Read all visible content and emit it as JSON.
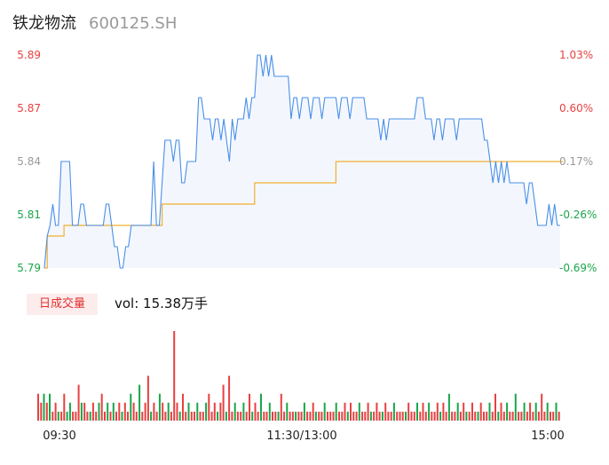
{
  "header": {
    "name": "铁龙物流",
    "code": "600125.SH"
  },
  "colors": {
    "up": "#e84040",
    "down": "#1aa64a",
    "flat": "#999999",
    "price_line": "#4a8fe8",
    "avg_line": "#f0b030",
    "area_fill": "#f3f7fd"
  },
  "volume": {
    "badge": "日成交量",
    "label": "vol: 15.38万手"
  },
  "chart_data": {
    "type": "line",
    "price_axis": {
      "ticks": [
        "5.89",
        "5.87",
        "5.84",
        "5.81",
        "5.79"
      ],
      "ylim": [
        5.79,
        5.89
      ]
    },
    "pct_axis": {
      "ticks": [
        "1.03%",
        "0.60%",
        "0.17%",
        "-0.26%",
        "-0.69%"
      ]
    },
    "time_axis": [
      "09:30",
      "11:30/13:00",
      "15:00"
    ],
    "series": [
      {
        "key": "price",
        "values": [
          5.79,
          5.805,
          5.81,
          5.82,
          5.81,
          5.81,
          5.84,
          5.84,
          5.84,
          5.84,
          5.81,
          5.81,
          5.81,
          5.82,
          5.82,
          5.81,
          5.81,
          5.81,
          5.81,
          5.81,
          5.81,
          5.81,
          5.82,
          5.82,
          5.81,
          5.8,
          5.8,
          5.79,
          5.79,
          5.8,
          5.8,
          5.81,
          5.81,
          5.81,
          5.81,
          5.81,
          5.81,
          5.81,
          5.81,
          5.84,
          5.81,
          5.81,
          5.83,
          5.85,
          5.85,
          5.85,
          5.84,
          5.85,
          5.85,
          5.83,
          5.83,
          5.84,
          5.84,
          5.84,
          5.84,
          5.87,
          5.87,
          5.86,
          5.86,
          5.86,
          5.85,
          5.86,
          5.86,
          5.85,
          5.86,
          5.85,
          5.84,
          5.86,
          5.85,
          5.86,
          5.86,
          5.86,
          5.87,
          5.86,
          5.87,
          5.87,
          5.89,
          5.89,
          5.88,
          5.89,
          5.88,
          5.89,
          5.88,
          5.88,
          5.88,
          5.88,
          5.88,
          5.88,
          5.86,
          5.87,
          5.87,
          5.86,
          5.87,
          5.87,
          5.87,
          5.86,
          5.87,
          5.87,
          5.87,
          5.86,
          5.87,
          5.87,
          5.87,
          5.87,
          5.87,
          5.86,
          5.87,
          5.87,
          5.87,
          5.86,
          5.87,
          5.87,
          5.87,
          5.87,
          5.87,
          5.86,
          5.86,
          5.86,
          5.86,
          5.86,
          5.85,
          5.86,
          5.85,
          5.86,
          5.86,
          5.86,
          5.86,
          5.86,
          5.86,
          5.86,
          5.86,
          5.86,
          5.86,
          5.87,
          5.87,
          5.87,
          5.86,
          5.86,
          5.86,
          5.85,
          5.86,
          5.86,
          5.85,
          5.86,
          5.86,
          5.86,
          5.86,
          5.85,
          5.86,
          5.86,
          5.86,
          5.86,
          5.86,
          5.86,
          5.86,
          5.86,
          5.86,
          5.85,
          5.85,
          5.84,
          5.83,
          5.84,
          5.83,
          5.84,
          5.83,
          5.84,
          5.83,
          5.83,
          5.83,
          5.83,
          5.83,
          5.83,
          5.82,
          5.83,
          5.83,
          5.82,
          5.81,
          5.81,
          5.81,
          5.81,
          5.82,
          5.81,
          5.82,
          5.81,
          5.81
        ]
      },
      {
        "key": "avg",
        "values": [
          5.79,
          5.805,
          5.805,
          5.805,
          5.805,
          5.805,
          5.805,
          5.81,
          5.81,
          5.81,
          5.81,
          5.81,
          5.81,
          5.81,
          5.81,
          5.81,
          5.81,
          5.81,
          5.81,
          5.81,
          5.81,
          5.81,
          5.81,
          5.81,
          5.81,
          5.81,
          5.81,
          5.81,
          5.81,
          5.81,
          5.81,
          5.81,
          5.81,
          5.81,
          5.81,
          5.81,
          5.81,
          5.81,
          5.81,
          5.81,
          5.81,
          5.81,
          5.82,
          5.82,
          5.82,
          5.82,
          5.82,
          5.82,
          5.82,
          5.82,
          5.82,
          5.82,
          5.82,
          5.82,
          5.82,
          5.82,
          5.82,
          5.82,
          5.82,
          5.82,
          5.82,
          5.82,
          5.82,
          5.82,
          5.82,
          5.82,
          5.82,
          5.82,
          5.82,
          5.82,
          5.82,
          5.82,
          5.82,
          5.82,
          5.82,
          5.83,
          5.83,
          5.83,
          5.83,
          5.83,
          5.83,
          5.83,
          5.83,
          5.83,
          5.83,
          5.83,
          5.83,
          5.83,
          5.83,
          5.83,
          5.83,
          5.83,
          5.83,
          5.83,
          5.83,
          5.83,
          5.83,
          5.83,
          5.83,
          5.83,
          5.83,
          5.83,
          5.83,
          5.83,
          5.84,
          5.84,
          5.84,
          5.84,
          5.84,
          5.84,
          5.84,
          5.84,
          5.84,
          5.84,
          5.84,
          5.84,
          5.84,
          5.84,
          5.84,
          5.84,
          5.84,
          5.84,
          5.84,
          5.84,
          5.84,
          5.84,
          5.84,
          5.84,
          5.84,
          5.84,
          5.84,
          5.84,
          5.84,
          5.84,
          5.84,
          5.84,
          5.84,
          5.84,
          5.84,
          5.84,
          5.84,
          5.84,
          5.84,
          5.84,
          5.84,
          5.84,
          5.84,
          5.84,
          5.84,
          5.84,
          5.84,
          5.84,
          5.84,
          5.84,
          5.84,
          5.84,
          5.84,
          5.84,
          5.84,
          5.84,
          5.84,
          5.84,
          5.84,
          5.84,
          5.84,
          5.84,
          5.84,
          5.84,
          5.84,
          5.84,
          5.84,
          5.84,
          5.84,
          5.84,
          5.84,
          5.84,
          5.84,
          5.84,
          5.84,
          5.84,
          5.84,
          5.84,
          5.84,
          5.84,
          5.84,
          5.84
        ]
      }
    ],
    "volume_bars": [
      [
        3,
        "u"
      ],
      [
        2,
        "u"
      ],
      [
        3,
        "d"
      ],
      [
        2,
        "u"
      ],
      [
        3,
        "d"
      ],
      [
        1,
        "u"
      ],
      [
        2,
        "u"
      ],
      [
        1,
        "d"
      ],
      [
        1,
        "u"
      ],
      [
        3,
        "u"
      ],
      [
        1,
        "d"
      ],
      [
        2,
        "d"
      ],
      [
        1,
        "u"
      ],
      [
        1,
        "u"
      ],
      [
        4,
        "u"
      ],
      [
        2,
        "d"
      ],
      [
        2,
        "u"
      ],
      [
        1,
        "u"
      ],
      [
        1,
        "d"
      ],
      [
        2,
        "u"
      ],
      [
        1,
        "u"
      ],
      [
        2,
        "d"
      ],
      [
        3,
        "u"
      ],
      [
        1,
        "u"
      ],
      [
        2,
        "d"
      ],
      [
        1,
        "u"
      ],
      [
        2,
        "d"
      ],
      [
        1,
        "u"
      ],
      [
        2,
        "u"
      ],
      [
        1,
        "d"
      ],
      [
        2,
        "u"
      ],
      [
        1,
        "u"
      ],
      [
        3,
        "d"
      ],
      [
        2,
        "u"
      ],
      [
        1,
        "u"
      ],
      [
        4,
        "d"
      ],
      [
        1,
        "u"
      ],
      [
        2,
        "u"
      ],
      [
        5,
        "u"
      ],
      [
        1,
        "d"
      ],
      [
        2,
        "u"
      ],
      [
        1,
        "u"
      ],
      [
        3,
        "d"
      ],
      [
        2,
        "u"
      ],
      [
        1,
        "u"
      ],
      [
        2,
        "d"
      ],
      [
        1,
        "u"
      ],
      [
        10,
        "u"
      ],
      [
        2,
        "u"
      ],
      [
        1,
        "d"
      ],
      [
        3,
        "u"
      ],
      [
        1,
        "u"
      ],
      [
        2,
        "d"
      ],
      [
        1,
        "u"
      ],
      [
        1,
        "u"
      ],
      [
        2,
        "d"
      ],
      [
        1,
        "u"
      ],
      [
        1,
        "u"
      ],
      [
        2,
        "d"
      ],
      [
        3,
        "u"
      ],
      [
        1,
        "u"
      ],
      [
        2,
        "u"
      ],
      [
        1,
        "d"
      ],
      [
        2,
        "u"
      ],
      [
        4,
        "u"
      ],
      [
        1,
        "d"
      ],
      [
        5,
        "u"
      ],
      [
        1,
        "u"
      ],
      [
        2,
        "d"
      ],
      [
        1,
        "u"
      ],
      [
        1,
        "u"
      ],
      [
        2,
        "d"
      ],
      [
        1,
        "u"
      ],
      [
        3,
        "u"
      ],
      [
        1,
        "d"
      ],
      [
        2,
        "u"
      ],
      [
        1,
        "u"
      ],
      [
        3,
        "d"
      ],
      [
        1,
        "u"
      ],
      [
        1,
        "u"
      ],
      [
        2,
        "d"
      ],
      [
        1,
        "u"
      ],
      [
        1,
        "u"
      ],
      [
        1,
        "d"
      ],
      [
        3,
        "u"
      ],
      [
        1,
        "u"
      ],
      [
        2,
        "d"
      ],
      [
        1,
        "u"
      ],
      [
        1,
        "u"
      ],
      [
        1,
        "d"
      ],
      [
        1,
        "u"
      ],
      [
        1,
        "u"
      ],
      [
        2,
        "d"
      ],
      [
        1,
        "u"
      ],
      [
        1,
        "u"
      ],
      [
        2,
        "u"
      ],
      [
        1,
        "d"
      ],
      [
        1,
        "u"
      ],
      [
        1,
        "u"
      ],
      [
        2,
        "d"
      ],
      [
        1,
        "u"
      ],
      [
        1,
        "u"
      ],
      [
        1,
        "u"
      ],
      [
        2,
        "d"
      ],
      [
        1,
        "u"
      ],
      [
        1,
        "u"
      ],
      [
        2,
        "u"
      ],
      [
        1,
        "d"
      ],
      [
        2,
        "u"
      ],
      [
        1,
        "u"
      ],
      [
        1,
        "u"
      ],
      [
        2,
        "d"
      ],
      [
        1,
        "u"
      ],
      [
        1,
        "u"
      ],
      [
        2,
        "u"
      ],
      [
        1,
        "d"
      ],
      [
        1,
        "u"
      ],
      [
        2,
        "u"
      ],
      [
        1,
        "u"
      ],
      [
        1,
        "d"
      ],
      [
        2,
        "u"
      ],
      [
        1,
        "u"
      ],
      [
        1,
        "u"
      ],
      [
        2,
        "d"
      ],
      [
        1,
        "u"
      ],
      [
        1,
        "u"
      ],
      [
        1,
        "u"
      ],
      [
        1,
        "d"
      ],
      [
        2,
        "u"
      ],
      [
        1,
        "u"
      ],
      [
        1,
        "u"
      ],
      [
        2,
        "d"
      ],
      [
        1,
        "u"
      ],
      [
        2,
        "u"
      ],
      [
        1,
        "u"
      ],
      [
        2,
        "d"
      ],
      [
        1,
        "u"
      ],
      [
        1,
        "u"
      ],
      [
        2,
        "u"
      ],
      [
        1,
        "d"
      ],
      [
        2,
        "u"
      ],
      [
        1,
        "u"
      ],
      [
        3,
        "d"
      ],
      [
        1,
        "u"
      ],
      [
        1,
        "u"
      ],
      [
        2,
        "d"
      ],
      [
        1,
        "u"
      ],
      [
        2,
        "u"
      ],
      [
        1,
        "d"
      ],
      [
        1,
        "u"
      ],
      [
        2,
        "u"
      ],
      [
        1,
        "u"
      ],
      [
        1,
        "d"
      ],
      [
        2,
        "u"
      ],
      [
        1,
        "u"
      ],
      [
        1,
        "u"
      ],
      [
        2,
        "d"
      ],
      [
        1,
        "u"
      ],
      [
        3,
        "u"
      ],
      [
        1,
        "d"
      ],
      [
        2,
        "u"
      ],
      [
        1,
        "u"
      ],
      [
        2,
        "d"
      ],
      [
        1,
        "u"
      ],
      [
        1,
        "u"
      ],
      [
        3,
        "d"
      ],
      [
        1,
        "u"
      ],
      [
        1,
        "u"
      ],
      [
        2,
        "d"
      ],
      [
        1,
        "u"
      ],
      [
        2,
        "u"
      ],
      [
        1,
        "u"
      ],
      [
        2,
        "d"
      ],
      [
        1,
        "u"
      ],
      [
        3,
        "u"
      ],
      [
        1,
        "u"
      ],
      [
        2,
        "d"
      ],
      [
        1,
        "u"
      ],
      [
        1,
        "u"
      ],
      [
        2,
        "d"
      ],
      [
        1,
        "u"
      ]
    ]
  }
}
